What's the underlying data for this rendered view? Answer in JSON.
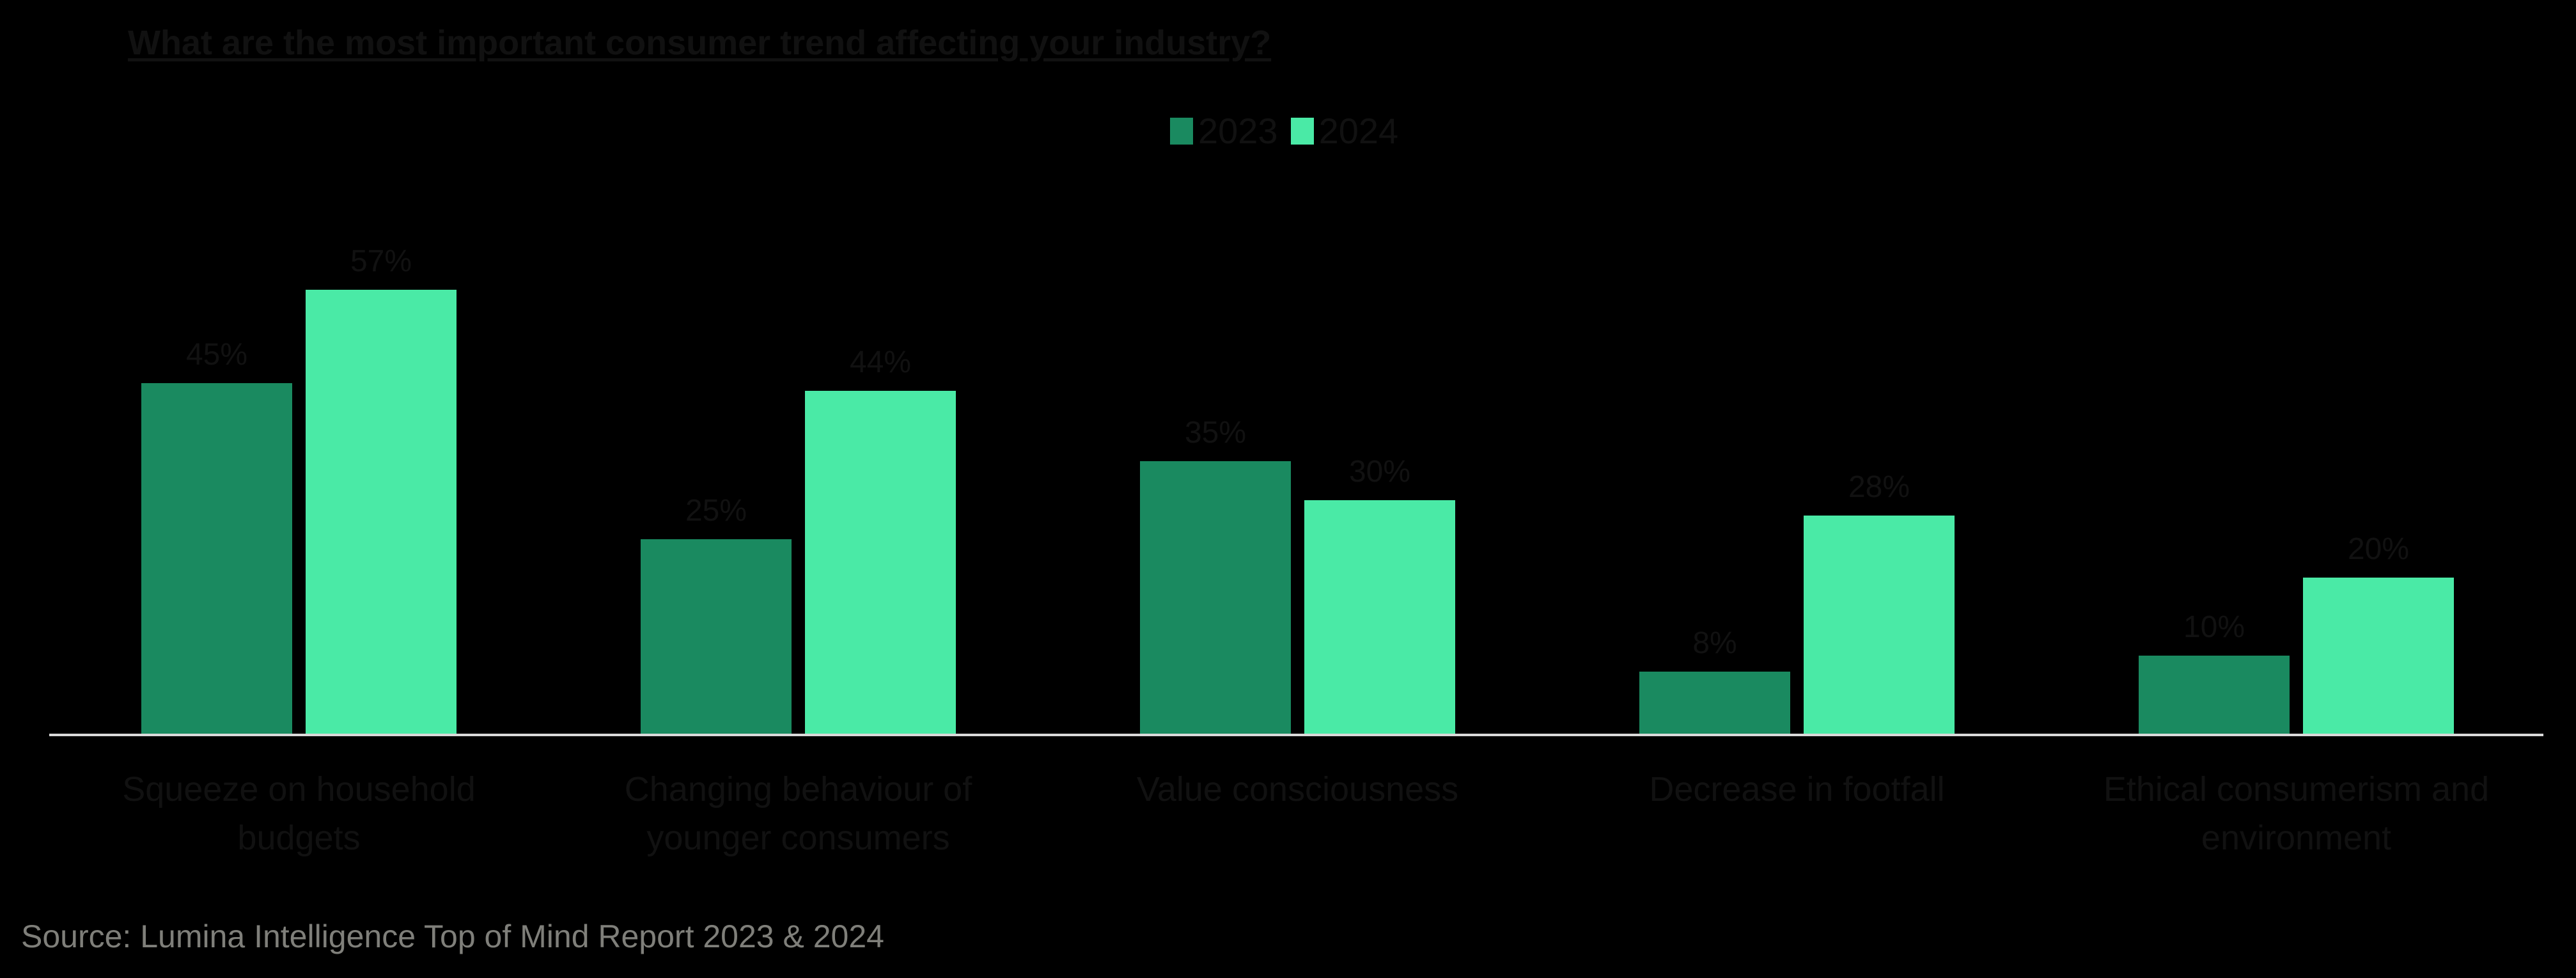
{
  "chart_data": {
    "type": "bar",
    "title": "What are the most important consumer trend affecting your industry?",
    "xlabel": "",
    "ylabel": "",
    "ylim": [
      0,
      60
    ],
    "grid": false,
    "legend_position": "top",
    "categories": [
      "Squeeze on household budgets",
      "Changing behaviour of younger consumers",
      "Value consciousness",
      "Decrease in footfall",
      "Ethical consumerism and environment"
    ],
    "series": [
      {
        "name": "2023",
        "color": "#1a8a60",
        "values": [
          45,
          25,
          35,
          8,
          10
        ],
        "labels": [
          "45%",
          "25%",
          "35%",
          "8%",
          "10%"
        ]
      },
      {
        "name": "2024",
        "color": "#4aeaa6",
        "values": [
          57,
          44,
          30,
          28,
          20
        ],
        "labels": [
          "57%",
          "44%",
          "30%",
          "28%",
          "20%"
        ]
      }
    ]
  },
  "legend": {
    "items": [
      {
        "label": "2023"
      },
      {
        "label": "2024"
      }
    ]
  },
  "category_lines": [
    [
      "Squeeze on household",
      "budgets"
    ],
    [
      "Changing behaviour of",
      "younger consumers"
    ],
    [
      "Value consciousness"
    ],
    [
      "Decrease in footfall"
    ],
    [
      "Ethical consumerism and",
      "environment"
    ]
  ],
  "source": "Source: Lumina Intelligence Top of Mind Report 2023 & 2024"
}
